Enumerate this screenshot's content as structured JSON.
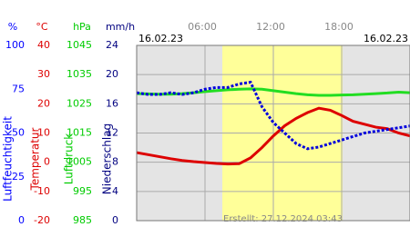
{
  "chart_data": {
    "type": "line",
    "date_left": "16.02.23",
    "date_right": "16.02.23",
    "created": "Erstellt: 27.12.2024 03:43",
    "xlim": [
      0,
      24
    ],
    "xticks": [
      {
        "value": 6,
        "label": "06:00"
      },
      {
        "value": 12,
        "label": "12:00"
      },
      {
        "value": 18,
        "label": "18:00"
      }
    ],
    "grid": true,
    "axes": [
      {
        "unit": "%",
        "label": "Luftfeuchtigkeit",
        "color": "#0000ff",
        "ylim": [
          0,
          100
        ],
        "yticks": [
          0,
          25,
          50,
          75,
          100
        ]
      },
      {
        "unit": "°C",
        "label": "Temperatur",
        "color": "#dd0000",
        "ylim": [
          -20,
          40
        ],
        "yticks": [
          -20,
          -10,
          0,
          10,
          20,
          30,
          40
        ]
      },
      {
        "unit": "hPa",
        "label": "Luftdruck",
        "color": "#00cc00",
        "ylim": [
          985,
          1045
        ],
        "yticks": [
          985,
          995,
          1005,
          1015,
          1025,
          1035,
          1045
        ]
      },
      {
        "unit": "mm/h",
        "label": "Niederschlag",
        "color": "#000080",
        "ylim": [
          0,
          24
        ],
        "yticks": [
          0,
          4,
          8,
          12,
          16,
          20,
          24
        ]
      }
    ],
    "x": [
      0,
      1,
      2,
      3,
      4,
      5,
      6,
      7,
      8,
      9,
      10,
      11,
      12,
      13,
      14,
      15,
      16,
      17,
      18,
      19,
      20,
      21,
      22,
      23,
      24
    ],
    "series": [
      {
        "axis": 1,
        "color": "#dd0000",
        "values": [
          3.3,
          2.6,
          1.9,
          1.2,
          0.6,
          0.2,
          -0.1,
          -0.4,
          -0.6,
          -0.5,
          1.5,
          5,
          9,
          12.5,
          15,
          17,
          18.5,
          17.8,
          16,
          14,
          13,
          12,
          11.5,
          10,
          9
        ]
      },
      {
        "axis": 2,
        "color": "#22dd22",
        "values": [
          1028.5,
          1028.4,
          1028.3,
          1028.3,
          1028.5,
          1028.8,
          1029.2,
          1029.5,
          1029.8,
          1030,
          1030.1,
          1030,
          1029.5,
          1029,
          1028.5,
          1028.1,
          1027.9,
          1027.9,
          1028,
          1028.1,
          1028.3,
          1028.5,
          1028.7,
          1029,
          1028.8
        ]
      },
      {
        "axis": 0,
        "color": "#0000dd",
        "dotted": true,
        "values": [
          73,
          72,
          72,
          73,
          72,
          73,
          75,
          76,
          76,
          78,
          79,
          65,
          56,
          50,
          44,
          41,
          42,
          44,
          46,
          48,
          50,
          51,
          52,
          53,
          54
        ]
      }
    ]
  }
}
